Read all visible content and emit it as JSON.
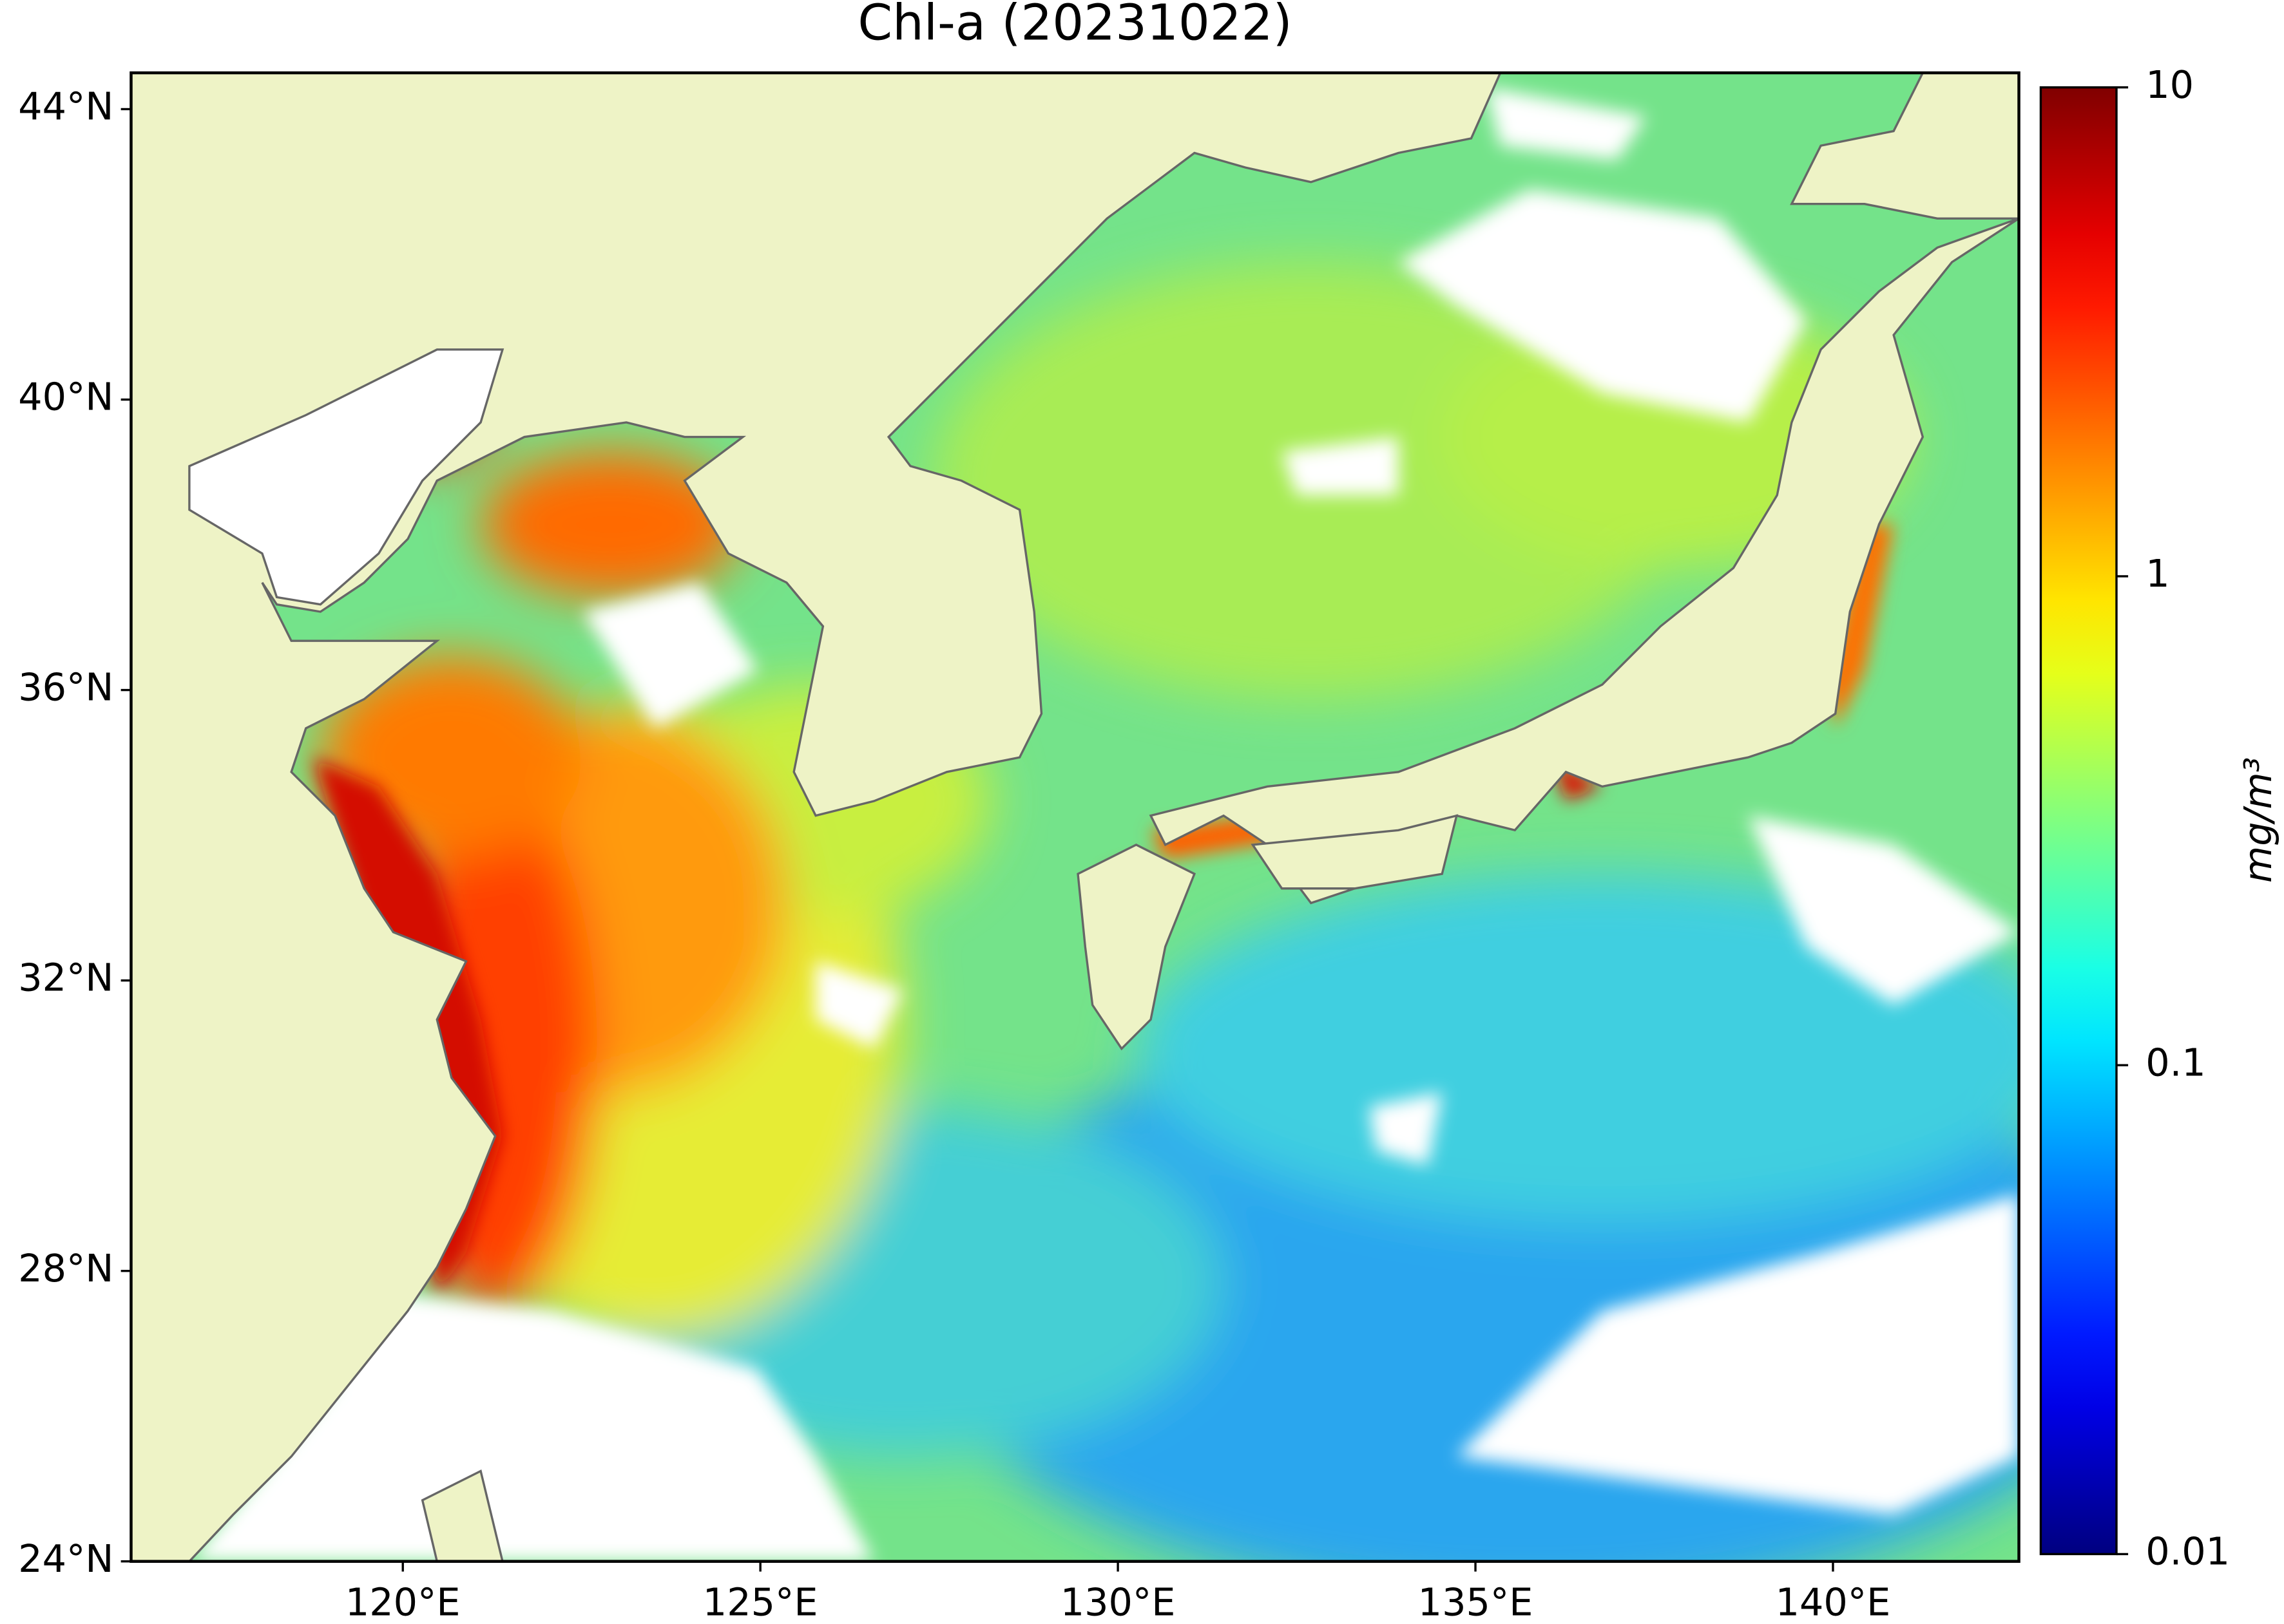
{
  "chart_data": {
    "type": "map",
    "title": "Chl-a (20231022)",
    "xlim": [
      116.2,
      142.6
    ],
    "ylim": [
      24,
      44.5
    ],
    "xticks": [
      {
        "value": 120,
        "label": "120°E"
      },
      {
        "value": 125,
        "label": "125°E"
      },
      {
        "value": 130,
        "label": "130°E"
      },
      {
        "value": 135,
        "label": "135°E"
      },
      {
        "value": 140,
        "label": "140°E"
      }
    ],
    "yticks": [
      {
        "value": 24,
        "label": "24°N"
      },
      {
        "value": 28,
        "label": "28°N"
      },
      {
        "value": 32,
        "label": "32°N"
      },
      {
        "value": 36,
        "label": "36°N"
      },
      {
        "value": 40,
        "label": "40°N"
      },
      {
        "value": 44,
        "label": "44°N"
      }
    ],
    "colorbar": {
      "label": "mg/m³",
      "scale": "log",
      "colormap": "jet",
      "lim": [
        0.01,
        10
      ],
      "ticks": [
        0.01,
        0.1,
        1,
        10
      ]
    }
  }
}
